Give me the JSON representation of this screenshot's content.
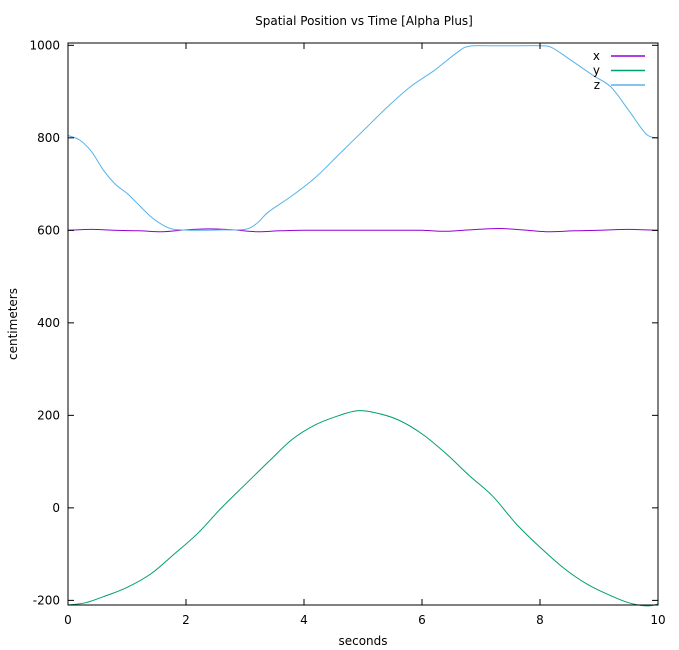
{
  "chart_data": {
    "type": "line",
    "title": "Spatial Position vs Time [Alpha Plus]",
    "xlabel": "seconds",
    "ylabel": "centimeters",
    "xlim": [
      0,
      10
    ],
    "ylim": [
      -210,
      1005
    ],
    "x_ticks": [
      "0",
      "2",
      "4",
      "6",
      "8",
      "10"
    ],
    "y_ticks": [
      "-200",
      "0",
      "200",
      "400",
      "600",
      "800",
      "1000"
    ],
    "grid": false,
    "legend_position": "top-right",
    "series": [
      {
        "name": "x",
        "color": "#9400d3",
        "points": [
          [
            0,
            600
          ],
          [
            0.4,
            602
          ],
          [
            0.8,
            600
          ],
          [
            1.2,
            599
          ],
          [
            1.6,
            597
          ],
          [
            2.0,
            601
          ],
          [
            2.4,
            603
          ],
          [
            2.8,
            601
          ],
          [
            3.2,
            597
          ],
          [
            3.6,
            599
          ],
          [
            4.0,
            600
          ],
          [
            4.5,
            600
          ],
          [
            5.0,
            600
          ],
          [
            5.5,
            600
          ],
          [
            6.0,
            600
          ],
          [
            6.4,
            598
          ],
          [
            6.8,
            601
          ],
          [
            7.3,
            604
          ],
          [
            7.7,
            601
          ],
          [
            8.1,
            597
          ],
          [
            8.6,
            599
          ],
          [
            9.0,
            600
          ],
          [
            9.5,
            602
          ],
          [
            10,
            600
          ]
        ]
      },
      {
        "name": "y",
        "color": "#009e73",
        "points": [
          [
            0,
            -210
          ],
          [
            0.3,
            -205
          ],
          [
            0.6,
            -192
          ],
          [
            1.0,
            -172
          ],
          [
            1.4,
            -143
          ],
          [
            1.8,
            -100
          ],
          [
            2.2,
            -55
          ],
          [
            2.6,
            0
          ],
          [
            3.0,
            50
          ],
          [
            3.4,
            100
          ],
          [
            3.8,
            148
          ],
          [
            4.2,
            180
          ],
          [
            4.6,
            200
          ],
          [
            4.9,
            210
          ],
          [
            5.2,
            206
          ],
          [
            5.6,
            190
          ],
          [
            6.0,
            160
          ],
          [
            6.4,
            118
          ],
          [
            6.8,
            70
          ],
          [
            7.2,
            25
          ],
          [
            7.6,
            -35
          ],
          [
            8.0,
            -85
          ],
          [
            8.4,
            -130
          ],
          [
            8.8,
            -165
          ],
          [
            9.2,
            -190
          ],
          [
            9.5,
            -205
          ],
          [
            9.8,
            -212
          ],
          [
            10,
            -208
          ]
        ]
      },
      {
        "name": "z",
        "color": "#56b4e9",
        "points": [
          [
            0,
            805
          ],
          [
            0.2,
            795
          ],
          [
            0.4,
            770
          ],
          [
            0.6,
            730
          ],
          [
            0.8,
            700
          ],
          [
            1.0,
            680
          ],
          [
            1.2,
            655
          ],
          [
            1.4,
            630
          ],
          [
            1.6,
            612
          ],
          [
            1.8,
            602
          ],
          [
            2.2,
            600
          ],
          [
            2.6,
            601
          ],
          [
            3.0,
            602
          ],
          [
            3.2,
            615
          ],
          [
            3.4,
            640
          ],
          [
            3.8,
            675
          ],
          [
            4.2,
            715
          ],
          [
            4.6,
            765
          ],
          [
            5.0,
            815
          ],
          [
            5.4,
            865
          ],
          [
            5.8,
            910
          ],
          [
            6.2,
            945
          ],
          [
            6.6,
            985
          ],
          [
            6.8,
            998
          ],
          [
            7.2,
            999
          ],
          [
            7.6,
            999
          ],
          [
            8.0,
            999
          ],
          [
            8.2,
            995
          ],
          [
            8.5,
            970
          ],
          [
            8.9,
            935
          ],
          [
            9.2,
            910
          ],
          [
            9.5,
            860
          ],
          [
            9.8,
            808
          ],
          [
            10,
            800
          ]
        ]
      }
    ]
  }
}
